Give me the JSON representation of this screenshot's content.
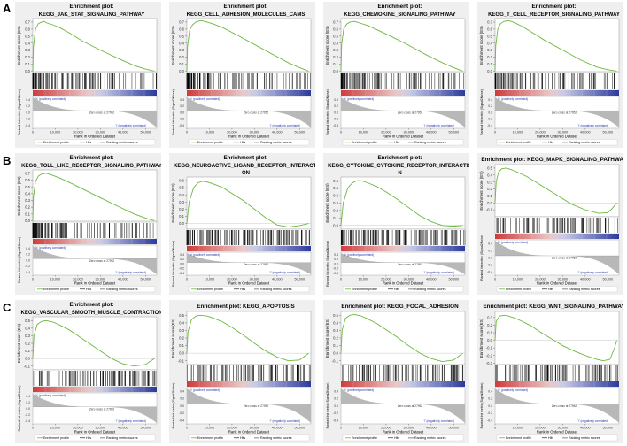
{
  "row_labels": [
    "A",
    "B",
    "C"
  ],
  "common": {
    "es_axis_label": "Enrichment score (ES)",
    "metric_axis_label": "Ranked list metric (Signal2Noise)",
    "x_axis_label": "Rank in Ordered Dataset",
    "x_ticks": [
      "0",
      "10,000",
      "20,000",
      "30,000",
      "40,000",
      "50,000"
    ],
    "pos_label": "'h' (positively correlated)",
    "neg_label": "'l' (negatively correlated)",
    "zero_cross": "Zero cross at 27952",
    "legend": [
      "Enrichment profile",
      "Hits",
      "Ranking metric scores"
    ],
    "colors": {
      "profile": "#6ab83c",
      "hits": "#000000",
      "metric": "#b8b8b8",
      "bar_high": "#cf3b3b",
      "bar_low": "#2b3a9c",
      "panel_bg": "#efefef"
    }
  },
  "chart_data": [
    {
      "type": "line",
      "title": "Enrichment plot:",
      "subtitle": "KEGG_JAK_STAT_SIGNALING_PATHWAY",
      "title_layout": "two-line",
      "ylabel": "Enrichment score (ES)",
      "xlabel": "Rank in Ordered Dataset",
      "yticks": [
        0.0,
        0.1,
        0.2,
        0.3,
        0.4,
        0.5,
        0.6,
        0.7
      ],
      "ylim": [
        -0.02,
        0.75
      ],
      "xlim": [
        0,
        55000
      ],
      "profile_x": [
        0,
        300,
        1200,
        2500,
        4000,
        5000,
        6000,
        9000,
        12000,
        16000,
        22000,
        30000,
        38000,
        45000,
        50000,
        54000
      ],
      "profile_y": [
        0,
        0.35,
        0.6,
        0.68,
        0.7,
        0.71,
        0.69,
        0.66,
        0.62,
        0.55,
        0.43,
        0.3,
        0.18,
        0.08,
        0.03,
        0.0
      ],
      "hit_profile": "front",
      "metric_cross": 27952
    },
    {
      "type": "line",
      "title": "Enrichment plot:",
      "subtitle": "KEGG_CELL_ADHESION_MOLECULES_CAMS",
      "title_layout": "two-line",
      "ylabel": "Enrichment score (ES)",
      "xlabel": "Rank in Ordered Dataset",
      "yticks": [
        0.0,
        0.1,
        0.2,
        0.3,
        0.4,
        0.5,
        0.6,
        0.7
      ],
      "ylim": [
        -0.02,
        0.75
      ],
      "xlim": [
        0,
        55000
      ],
      "profile_x": [
        0,
        300,
        1200,
        2500,
        4000,
        6000,
        8000,
        12000,
        16000,
        22000,
        30000,
        38000,
        45000,
        50000,
        54000
      ],
      "profile_y": [
        0,
        0.35,
        0.58,
        0.66,
        0.7,
        0.72,
        0.71,
        0.67,
        0.62,
        0.52,
        0.38,
        0.24,
        0.12,
        0.05,
        0.0
      ],
      "hit_profile": "front",
      "metric_cross": 27952
    },
    {
      "type": "line",
      "title": "Enrichment plot:",
      "subtitle": "KEGG_CHEMOKINE_SIGNALING_PATHWAY",
      "title_layout": "two-line",
      "ylabel": "Enrichment score (ES)",
      "xlabel": "Rank in Ordered Dataset",
      "yticks": [
        0.0,
        0.1,
        0.2,
        0.3,
        0.4,
        0.5,
        0.6,
        0.7
      ],
      "ylim": [
        -0.02,
        0.75
      ],
      "xlim": [
        0,
        55000
      ],
      "profile_x": [
        0,
        300,
        1200,
        2500,
        4000,
        6000,
        8000,
        12000,
        16000,
        22000,
        30000,
        38000,
        45000,
        50000,
        54000
      ],
      "profile_y": [
        0,
        0.38,
        0.6,
        0.67,
        0.7,
        0.71,
        0.69,
        0.65,
        0.59,
        0.5,
        0.37,
        0.23,
        0.12,
        0.05,
        0.0
      ],
      "hit_profile": "front",
      "metric_cross": 27952
    },
    {
      "type": "line",
      "title": "Enrichment plot:",
      "subtitle": "KEGG_T_CELL_RECEPTOR_SIGNALING_PATHWAY",
      "title_layout": "two-line",
      "ylabel": "Enrichment score (ES)",
      "xlabel": "Rank in Ordered Dataset",
      "yticks": [
        0.0,
        0.1,
        0.2,
        0.3,
        0.4,
        0.5,
        0.6,
        0.7
      ],
      "ylim": [
        -0.02,
        0.75
      ],
      "xlim": [
        0,
        55000
      ],
      "profile_x": [
        0,
        300,
        1200,
        2500,
        4000,
        6000,
        8000,
        12000,
        16000,
        22000,
        30000,
        38000,
        45000,
        50000,
        54000
      ],
      "profile_y": [
        0,
        0.36,
        0.6,
        0.68,
        0.71,
        0.72,
        0.7,
        0.64,
        0.56,
        0.44,
        0.3,
        0.16,
        0.06,
        0.02,
        0.0
      ],
      "hit_profile": "front",
      "metric_cross": 27952
    },
    {
      "type": "line",
      "title": "Enrichment plot:",
      "subtitle": "KEGG_TOLL_LIKE_RECEPTOR_SIGNALING_PATHWAY",
      "title_layout": "two-line",
      "ylabel": "Enrichment score (ES)",
      "xlabel": "Rank in Ordered Dataset",
      "yticks": [
        0.0,
        0.1,
        0.2,
        0.3,
        0.4,
        0.5,
        0.6,
        0.7
      ],
      "ylim": [
        -0.02,
        0.75
      ],
      "xlim": [
        0,
        55000
      ],
      "profile_x": [
        0,
        300,
        1200,
        2500,
        4000,
        6000,
        8000,
        12000,
        16000,
        22000,
        30000,
        38000,
        45000,
        50000,
        54000
      ],
      "profile_y": [
        0,
        0.35,
        0.58,
        0.66,
        0.69,
        0.7,
        0.68,
        0.63,
        0.57,
        0.47,
        0.34,
        0.21,
        0.1,
        0.04,
        0.0
      ],
      "hit_profile": "front",
      "metric_cross": 27952
    },
    {
      "type": "line",
      "title": "Enrichment plot:",
      "subtitle": "KEGG_NEUROACTIVE_LIGAND_RECEPTOR_INTERACTI ON",
      "title_layout": "two-line-wrapped",
      "subtitle_lines": [
        "KEGG_NEUROACTIVE_LIGAND_RECEPTOR_INTERACTI",
        "ON"
      ],
      "ylabel": "Enrichment score (ES)",
      "xlabel": "Rank in Ordered Dataset",
      "yticks": [
        0.0,
        0.1,
        0.2,
        0.3,
        0.4,
        0.5,
        0.6
      ],
      "ylim": [
        -0.08,
        0.65
      ],
      "xlim": [
        0,
        55000
      ],
      "profile_x": [
        0,
        1000,
        3000,
        5000,
        7000,
        9000,
        12000,
        16000,
        20000,
        25000,
        30000,
        35000,
        40000,
        45000,
        50000,
        54000
      ],
      "profile_y": [
        0,
        0.3,
        0.5,
        0.57,
        0.59,
        0.58,
        0.55,
        0.5,
        0.42,
        0.32,
        0.2,
        0.08,
        -0.02,
        -0.05,
        -0.03,
        0.0
      ],
      "hit_profile": "dense",
      "metric_cross": 27952
    },
    {
      "type": "line",
      "title": "Enrichment plot:",
      "subtitle": "KEGG_CYTOKINE_CYTOKINE_RECEPTOR_INTERACTIO N",
      "title_layout": "two-line-wrapped",
      "subtitle_lines": [
        "KEGG_CYTOKINE_CYTOKINE_RECEPTOR_INTERACTIO",
        "N"
      ],
      "ylabel": "Enrichment score (ES)",
      "xlabel": "Rank in Ordered Dataset",
      "yticks": [
        0.0,
        0.1,
        0.2,
        0.3,
        0.4,
        0.5,
        0.6
      ],
      "ylim": [
        -0.05,
        0.65
      ],
      "xlim": [
        0,
        55000
      ],
      "profile_x": [
        0,
        1000,
        3000,
        5000,
        7000,
        9000,
        12000,
        16000,
        20000,
        25000,
        30000,
        35000,
        40000,
        45000,
        50000,
        54000
      ],
      "profile_y": [
        0,
        0.3,
        0.5,
        0.57,
        0.6,
        0.6,
        0.57,
        0.52,
        0.45,
        0.35,
        0.24,
        0.13,
        0.05,
        0.0,
        -0.01,
        0.0
      ],
      "hit_profile": "dense",
      "metric_cross": 27952
    },
    {
      "type": "line",
      "title": "Enrichment plot: KEGG_MAPK_SIGNALING_PATHWAY",
      "subtitle": "",
      "title_layout": "one-line",
      "ylabel": "Enrichment score (ES)",
      "xlabel": "Rank in Ordered Dataset",
      "yticks": [
        -0.1,
        0.0,
        0.1,
        0.2,
        0.3,
        0.4,
        0.5
      ],
      "ylim": [
        -0.2,
        0.55
      ],
      "xlim": [
        0,
        55000
      ],
      "profile_x": [
        0,
        500,
        1500,
        3000,
        5000,
        7000,
        10000,
        14000,
        18000,
        22000,
        28000,
        34000,
        40000,
        46000,
        50000,
        52000,
        54000
      ],
      "profile_y": [
        0,
        0.3,
        0.44,
        0.49,
        0.5,
        0.48,
        0.44,
        0.38,
        0.3,
        0.22,
        0.1,
        -0.02,
        -0.1,
        -0.15,
        -0.14,
        -0.08,
        0.0
      ],
      "hit_profile": "uniform",
      "metric_cross": 27952
    },
    {
      "type": "line",
      "title": "Enrichment plot:",
      "subtitle": "KEGG_VASCULAR_SMOOTH_MUSCLE_CONTRACTION",
      "title_layout": "two-line",
      "ylabel": "Enrichment score (ES)",
      "xlabel": "Rank in Ordered Dataset",
      "yticks": [
        -0.1,
        0.0,
        0.1,
        0.2,
        0.3,
        0.4,
        0.5
      ],
      "ylim": [
        -0.15,
        0.55
      ],
      "xlim": [
        0,
        55000
      ],
      "profile_x": [
        0,
        500,
        2000,
        4000,
        6000,
        9000,
        12000,
        16000,
        20000,
        25000,
        30000,
        35000,
        40000,
        45000,
        50000,
        54000
      ],
      "profile_y": [
        0,
        0.3,
        0.45,
        0.49,
        0.5,
        0.48,
        0.44,
        0.38,
        0.3,
        0.2,
        0.1,
        0.0,
        -0.07,
        -0.1,
        -0.08,
        0.0
      ],
      "hit_profile": "uniform",
      "metric_cross": 27952
    },
    {
      "type": "line",
      "title": "Enrichment plot: KEGG_APOPTOSIS",
      "subtitle": "",
      "title_layout": "one-line",
      "ylabel": "Enrichment score (ES)",
      "xlabel": "Rank in Ordered Dataset",
      "yticks": [
        -0.1,
        0.0,
        0.1,
        0.2,
        0.3,
        0.4,
        0.5
      ],
      "ylim": [
        -0.15,
        0.55
      ],
      "xlim": [
        0,
        55000
      ],
      "profile_x": [
        0,
        500,
        2000,
        4000,
        6000,
        9000,
        12000,
        16000,
        20000,
        25000,
        30000,
        35000,
        40000,
        45000,
        50000,
        54000
      ],
      "profile_y": [
        0,
        0.28,
        0.44,
        0.49,
        0.5,
        0.49,
        0.46,
        0.41,
        0.34,
        0.24,
        0.13,
        0.03,
        -0.05,
        -0.1,
        -0.09,
        0.0
      ],
      "hit_profile": "uniform",
      "metric_cross": 27952
    },
    {
      "type": "line",
      "title": "Enrichment plot: KEGG_FOCAL_ADHESION",
      "subtitle": "",
      "title_layout": "one-line",
      "ylabel": "Enrichment score (ES)",
      "xlabel": "Rank in Ordered Dataset",
      "yticks": [
        -0.1,
        0.0,
        0.1,
        0.2,
        0.3,
        0.4,
        0.5
      ],
      "ylim": [
        -0.15,
        0.55
      ],
      "xlim": [
        0,
        55000
      ],
      "profile_x": [
        0,
        500,
        2000,
        4000,
        6000,
        9000,
        12000,
        16000,
        20000,
        25000,
        30000,
        35000,
        40000,
        45000,
        50000,
        54000
      ],
      "profile_y": [
        0,
        0.3,
        0.46,
        0.5,
        0.51,
        0.49,
        0.45,
        0.39,
        0.31,
        0.21,
        0.1,
        0.0,
        -0.07,
        -0.11,
        -0.09,
        0.0
      ],
      "hit_profile": "uniform",
      "metric_cross": 27952
    },
    {
      "type": "line",
      "title": "Enrichment plot: KEGG_WNT_SIGNALING_PATHWAY",
      "subtitle": "",
      "title_layout": "one-line",
      "ylabel": "Enrichment score (ES)",
      "xlabel": "Rank in Ordered Dataset",
      "yticks": [
        -0.3,
        -0.2,
        -0.1,
        0.0,
        0.1,
        0.2,
        0.3
      ],
      "ylim": [
        -0.32,
        0.38
      ],
      "xlim": [
        0,
        55000
      ],
      "profile_x": [
        0,
        500,
        2000,
        4000,
        6000,
        9000,
        12000,
        16000,
        20000,
        25000,
        30000,
        35000,
        40000,
        45000,
        48000,
        51000,
        53000,
        54000
      ],
      "profile_y": [
        0,
        0.25,
        0.32,
        0.33,
        0.32,
        0.29,
        0.25,
        0.19,
        0.11,
        0.02,
        -0.07,
        -0.14,
        -0.2,
        -0.25,
        -0.27,
        -0.25,
        -0.1,
        0.0
      ],
      "hit_profile": "uniform",
      "metric_cross": 27952
    }
  ]
}
